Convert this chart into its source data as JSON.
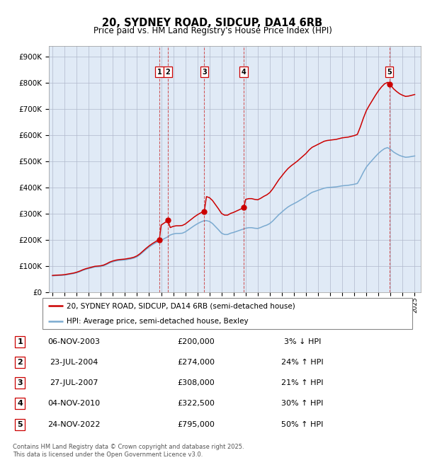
{
  "title": "20, SYDNEY ROAD, SIDCUP, DA14 6RB",
  "subtitle": "Price paid vs. HM Land Registry's House Price Index (HPI)",
  "background_color": "#ffffff",
  "plot_bg_color": "#e8eef8",
  "grid_color": "#b0b8cc",
  "hpi_color": "#7aaad0",
  "price_color": "#cc0000",
  "ylim": [
    0,
    940000
  ],
  "yticks": [
    0,
    100000,
    200000,
    300000,
    400000,
    500000,
    600000,
    700000,
    800000,
    900000
  ],
  "ytick_labels": [
    "£0",
    "£100K",
    "£200K",
    "£300K",
    "£400K",
    "£500K",
    "£600K",
    "£700K",
    "£800K",
    "£900K"
  ],
  "xlim_start": 1994.7,
  "xlim_end": 2025.5,
  "xtick_years": [
    1995,
    1996,
    1997,
    1998,
    1999,
    2000,
    2001,
    2002,
    2003,
    2004,
    2005,
    2006,
    2007,
    2008,
    2009,
    2010,
    2011,
    2012,
    2013,
    2014,
    2015,
    2016,
    2017,
    2018,
    2019,
    2020,
    2021,
    2022,
    2023,
    2024,
    2025
  ],
  "sales": [
    {
      "num": 1,
      "date_f": 2003.85,
      "price": 200000,
      "label": "06-NOV-2003",
      "price_str": "£200,000",
      "pct": "3%",
      "dir": "↓"
    },
    {
      "num": 2,
      "date_f": 2004.56,
      "price": 274000,
      "label": "23-JUL-2004",
      "price_str": "£274,000",
      "pct": "24%",
      "dir": "↑"
    },
    {
      "num": 3,
      "date_f": 2007.57,
      "price": 308000,
      "label": "27-JUL-2007",
      "price_str": "£308,000",
      "pct": "21%",
      "dir": "↑"
    },
    {
      "num": 4,
      "date_f": 2010.84,
      "price": 322500,
      "label": "04-NOV-2010",
      "price_str": "£322,500",
      "pct": "30%",
      "dir": "↑"
    },
    {
      "num": 5,
      "date_f": 2022.9,
      "price": 795000,
      "label": "24-NOV-2022",
      "price_str": "£795,000",
      "pct": "50%",
      "dir": "↑"
    }
  ],
  "legend_line1": "20, SYDNEY ROAD, SIDCUP, DA14 6RB (semi-detached house)",
  "legend_line2": "HPI: Average price, semi-detached house, Bexley",
  "footer": "Contains HM Land Registry data © Crown copyright and database right 2025.\nThis data is licensed under the Open Government Licence v3.0.",
  "hpi_data_years": [
    1995.0,
    1995.25,
    1995.5,
    1995.75,
    1996.0,
    1996.25,
    1996.5,
    1996.75,
    1997.0,
    1997.25,
    1997.5,
    1997.75,
    1998.0,
    1998.25,
    1998.5,
    1998.75,
    1999.0,
    1999.25,
    1999.5,
    1999.75,
    2000.0,
    2000.25,
    2000.5,
    2000.75,
    2001.0,
    2001.25,
    2001.5,
    2001.75,
    2002.0,
    2002.25,
    2002.5,
    2002.75,
    2003.0,
    2003.25,
    2003.5,
    2003.75,
    2004.0,
    2004.25,
    2004.5,
    2004.75,
    2005.0,
    2005.25,
    2005.5,
    2005.75,
    2006.0,
    2006.25,
    2006.5,
    2006.75,
    2007.0,
    2007.25,
    2007.5,
    2007.75,
    2008.0,
    2008.25,
    2008.5,
    2008.75,
    2009.0,
    2009.25,
    2009.5,
    2009.75,
    2010.0,
    2010.25,
    2010.5,
    2010.75,
    2011.0,
    2011.25,
    2011.5,
    2011.75,
    2012.0,
    2012.25,
    2012.5,
    2012.75,
    2013.0,
    2013.25,
    2013.5,
    2013.75,
    2014.0,
    2014.25,
    2014.5,
    2014.75,
    2015.0,
    2015.25,
    2015.5,
    2015.75,
    2016.0,
    2016.25,
    2016.5,
    2016.75,
    2017.0,
    2017.25,
    2017.5,
    2017.75,
    2018.0,
    2018.25,
    2018.5,
    2018.75,
    2019.0,
    2019.25,
    2019.5,
    2019.75,
    2020.0,
    2020.25,
    2020.5,
    2020.75,
    2021.0,
    2021.25,
    2021.5,
    2021.75,
    2022.0,
    2022.25,
    2022.5,
    2022.75,
    2023.0,
    2023.25,
    2023.5,
    2023.75,
    2024.0,
    2024.25,
    2024.5,
    2024.75,
    2025.0
  ],
  "hpi_data_values": [
    62000,
    63000,
    63500,
    64000,
    65000,
    67000,
    69000,
    71000,
    74000,
    78000,
    83000,
    87000,
    90000,
    93000,
    96000,
    97000,
    98000,
    101000,
    106000,
    112000,
    116000,
    119000,
    121000,
    122000,
    123000,
    125000,
    127000,
    130000,
    135000,
    143000,
    153000,
    163000,
    172000,
    180000,
    187000,
    193000,
    198000,
    204000,
    210000,
    218000,
    222000,
    224000,
    224000,
    225000,
    230000,
    238000,
    246000,
    254000,
    261000,
    267000,
    272000,
    273000,
    270000,
    262000,
    250000,
    238000,
    225000,
    220000,
    220000,
    225000,
    228000,
    232000,
    236000,
    240000,
    244000,
    246000,
    246000,
    244000,
    243000,
    247000,
    252000,
    256000,
    262000,
    272000,
    284000,
    296000,
    306000,
    316000,
    325000,
    332000,
    338000,
    344000,
    351000,
    358000,
    365000,
    374000,
    381000,
    385000,
    389000,
    393000,
    397000,
    399000,
    400000,
    401000,
    402000,
    404000,
    406000,
    407000,
    408000,
    410000,
    412000,
    415000,
    435000,
    458000,
    478000,
    492000,
    505000,
    518000,
    530000,
    540000,
    548000,
    552000,
    545000,
    535000,
    528000,
    522000,
    518000,
    515000,
    516000,
    518000,
    520000
  ]
}
